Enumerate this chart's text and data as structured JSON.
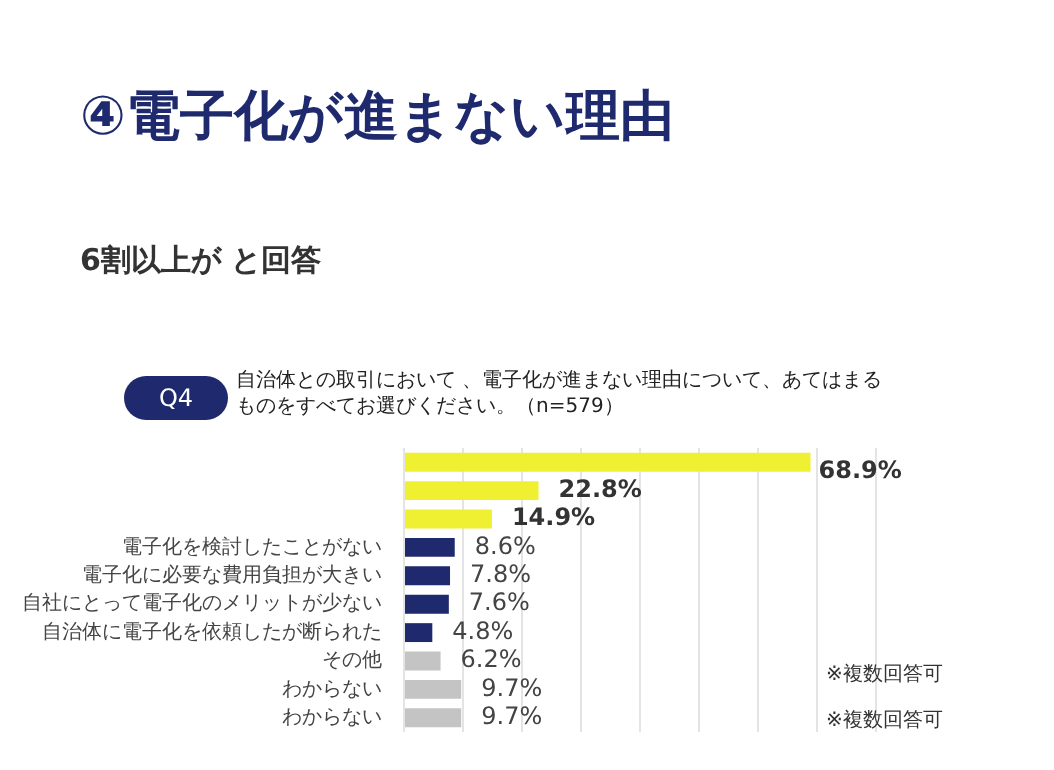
{
  "chart_data": {
    "type": "bar",
    "orientation": "horizontal",
    "title": "④電子化が進まない理由",
    "subtitle": "6割以上が と回答",
    "annotations": [
      "Q4",
      "自治体との取引において 、電子化が進まない理由について、あてはまるものをすべてお選びください。（n=579）",
      "※複数回答可",
      "※複数回答可"
    ],
    "categories": [
      null,
      null,
      null,
      "電子化を検討したことがない",
      "電子化に必要な費用負担が大きい",
      "自社にとって電子化のメリットが少ない",
      "自治体に電子化を依頼したが断られた",
      "その他",
      "わからない",
      "わからない"
    ],
    "values": [
      68.9,
      22.8,
      14.9,
      8.6,
      7.8,
      7.6,
      4.8,
      6.2,
      9.7,
      9.7
    ],
    "value_labels": [
      "68.9%",
      "22.8%",
      "14.9%",
      "8.6%",
      "7.8%",
      "7.6%",
      "4.8%",
      "6.2%",
      "9.7%",
      "9.7%"
    ],
    "colors": [
      "#f0f032",
      "#f0f032",
      "#f0f032",
      "#1f2a6e",
      "#1f2a6e",
      "#1f2a6e",
      "#1f2a6e",
      "#c4c4c4",
      "#c4c4c4",
      "#c4c4c4"
    ],
    "xlim": [
      0,
      80
    ],
    "xticks": [
      {
        "value": 0,
        "label": null
      },
      {
        "value": 10,
        "label": null
      },
      {
        "value": 20,
        "label": null
      },
      {
        "value": 30,
        "label": null
      },
      {
        "value": 40,
        "label": null
      },
      {
        "value": 50,
        "label": null
      },
      {
        "value": 60,
        "label": null
      },
      {
        "value": 70,
        "label": null
      },
      {
        "value": 80,
        "label": null
      }
    ],
    "grid": "x",
    "tick_labels": "y"
  }
}
